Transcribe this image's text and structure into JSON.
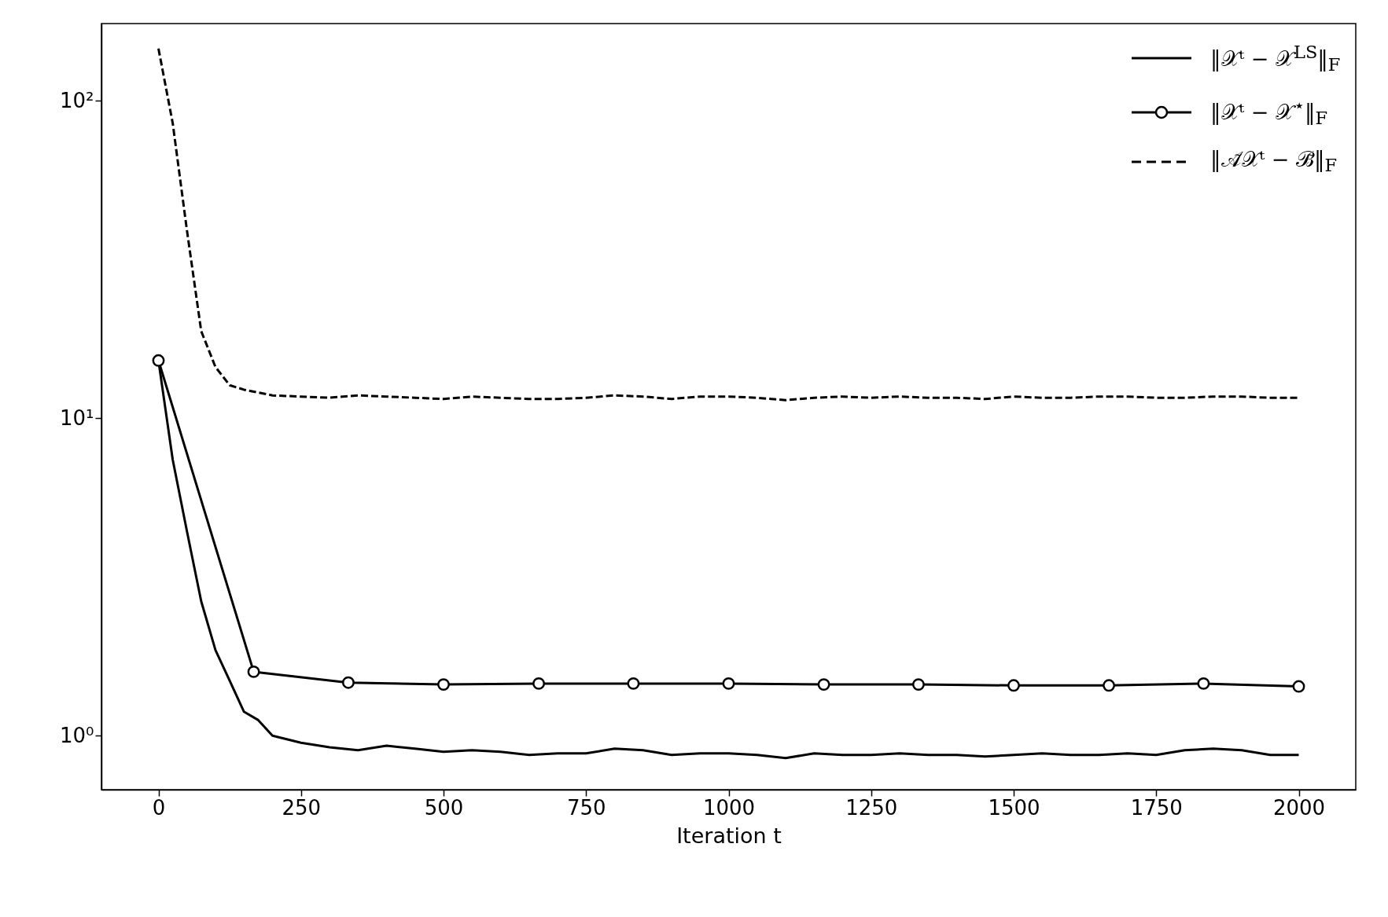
{
  "chart_data": {
    "type": "line",
    "xlabel": "Iteration t",
    "xlim": [
      -100,
      2100
    ],
    "xticks": [
      0,
      250,
      500,
      750,
      1000,
      1250,
      1500,
      1750,
      2000
    ],
    "log": true,
    "ylim": [
      0.676,
      175
    ],
    "yticks": [
      {
        "value": 1,
        "label": "10⁰"
      },
      {
        "value": 10,
        "label": "10¹"
      },
      {
        "value": 100,
        "label": "10²"
      }
    ],
    "grid": false,
    "legend": "top right",
    "series": [
      {
        "name": "‖𝒳ᵗ − 𝒳$^{LS}$‖$_{F}$",
        "color": "#000000",
        "line_style": "solid",
        "marker": "none",
        "x": [
          0,
          25,
          50,
          75,
          100,
          125,
          150,
          175,
          200,
          250,
          300,
          350,
          400,
          450,
          500,
          550,
          600,
          650,
          700,
          750,
          800,
          850,
          900,
          950,
          1000,
          1050,
          1100,
          1150,
          1200,
          1250,
          1300,
          1350,
          1400,
          1450,
          1500,
          1550,
          1600,
          1650,
          1700,
          1750,
          1800,
          1850,
          1900,
          1950,
          2000
        ],
        "values": [
          15.2,
          7.4,
          4.4,
          2.65,
          1.86,
          1.49,
          1.19,
          1.12,
          1.0,
          0.95,
          0.92,
          0.9,
          0.93,
          0.91,
          0.89,
          0.9,
          0.89,
          0.87,
          0.88,
          0.88,
          0.91,
          0.9,
          0.87,
          0.88,
          0.88,
          0.87,
          0.85,
          0.88,
          0.87,
          0.87,
          0.88,
          0.87,
          0.87,
          0.86,
          0.87,
          0.88,
          0.87,
          0.87,
          0.88,
          0.87,
          0.9,
          0.91,
          0.9,
          0.87,
          0.87
        ]
      },
      {
        "name": "‖𝒳ᵗ − 𝒳$^{⋆}$‖$_{F}$",
        "color": "#000000",
        "line_style": "solid",
        "marker": "circle",
        "x": [
          0,
          167,
          333,
          500,
          667,
          833,
          1000,
          1167,
          1333,
          1500,
          1667,
          1833,
          2000
        ],
        "values": [
          15.2,
          1.59,
          1.47,
          1.45,
          1.46,
          1.46,
          1.46,
          1.45,
          1.45,
          1.44,
          1.44,
          1.46,
          1.43
        ]
      },
      {
        "name": "‖𝒜̃𝒳ᵗ − ℬ̃‖$_{F}$",
        "color": "#000000",
        "line_style": "dashed",
        "marker": "none",
        "x": [
          0,
          25,
          50,
          75,
          100,
          125,
          150,
          200,
          250,
          300,
          350,
          400,
          450,
          500,
          550,
          600,
          650,
          700,
          750,
          800,
          850,
          900,
          950,
          1000,
          1050,
          1100,
          1150,
          1200,
          1250,
          1300,
          1350,
          1400,
          1450,
          1500,
          1550,
          1600,
          1650,
          1700,
          1750,
          1800,
          1850,
          1900,
          1950,
          2000
        ],
        "values": [
          146,
          85,
          39,
          18.8,
          14.5,
          12.7,
          12.3,
          11.8,
          11.7,
          11.6,
          11.8,
          11.7,
          11.6,
          11.5,
          11.7,
          11.6,
          11.5,
          11.5,
          11.6,
          11.8,
          11.7,
          11.5,
          11.7,
          11.7,
          11.6,
          11.4,
          11.6,
          11.7,
          11.6,
          11.7,
          11.6,
          11.6,
          11.5,
          11.7,
          11.6,
          11.6,
          11.7,
          11.7,
          11.6,
          11.6,
          11.7,
          11.7,
          11.6,
          11.6
        ]
      }
    ]
  }
}
